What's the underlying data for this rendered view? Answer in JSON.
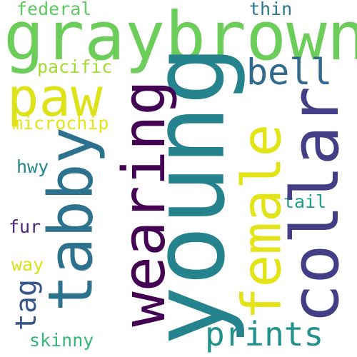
{
  "words": [
    {
      "id": "graybrown",
      "text": "graybrown",
      "color": "#6ccd5a",
      "orientation": "horizontal"
    },
    {
      "id": "young",
      "text": "young",
      "color": "#25838e",
      "orientation": "vertical"
    },
    {
      "id": "collar",
      "text": "collar",
      "color": "#433e85",
      "orientation": "vertical"
    },
    {
      "id": "wearing",
      "text": "wearing",
      "color": "#440154",
      "orientation": "vertical"
    },
    {
      "id": "tabby",
      "text": "tabby",
      "color": "#2c728e",
      "orientation": "vertical"
    },
    {
      "id": "female",
      "text": "female",
      "color": "#e2e418",
      "orientation": "vertical"
    },
    {
      "id": "paw",
      "text": "paw",
      "color": "#dde318",
      "orientation": "horizontal"
    },
    {
      "id": "prints",
      "text": "prints",
      "color": "#21918c",
      "orientation": "horizontal"
    },
    {
      "id": "bell",
      "text": "bell",
      "color": "#31688e",
      "orientation": "horizontal"
    },
    {
      "id": "tag",
      "text": "tag",
      "color": "#39568c",
      "orientation": "vertical"
    },
    {
      "id": "pacific",
      "text": "pacific",
      "color": "#a5db36",
      "orientation": "horizontal"
    },
    {
      "id": "microchip",
      "text": "microchip",
      "color": "#e5e419",
      "orientation": "horizontal"
    },
    {
      "id": "federal",
      "text": "federal",
      "color": "#5ec962",
      "orientation": "horizontal"
    },
    {
      "id": "thin",
      "text": "thin",
      "color": "#2a788e",
      "orientation": "horizontal"
    },
    {
      "id": "hwy",
      "text": "hwy",
      "color": "#23898e",
      "orientation": "horizontal"
    },
    {
      "id": "fur",
      "text": "fur",
      "color": "#482878",
      "orientation": "horizontal"
    },
    {
      "id": "way",
      "text": "way",
      "color": "#d8e219",
      "orientation": "horizontal"
    },
    {
      "id": "tail",
      "text": "tail",
      "color": "#1f9e89",
      "orientation": "horizontal"
    },
    {
      "id": "skinny",
      "text": "skinny",
      "color": "#35b779",
      "orientation": "horizontal"
    }
  ]
}
